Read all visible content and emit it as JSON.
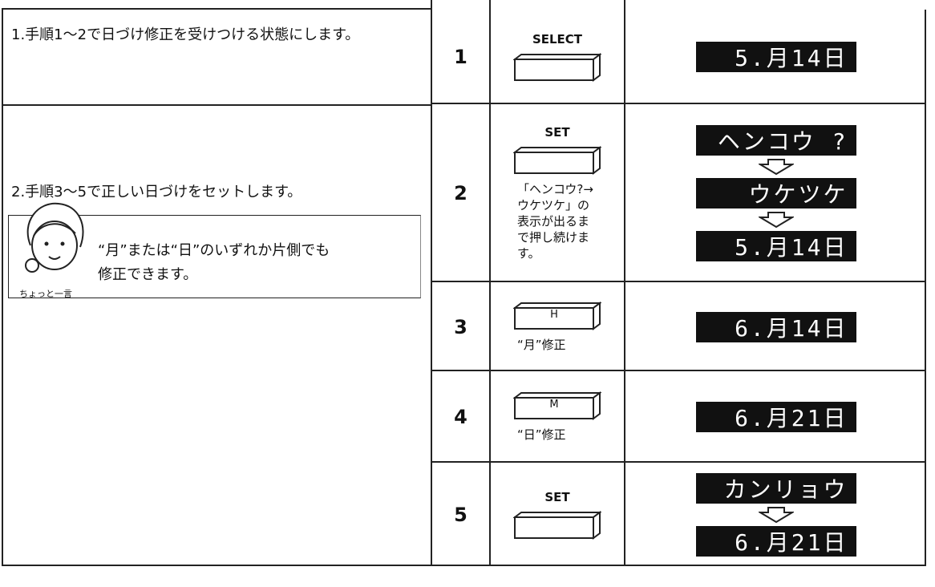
{
  "left": {
    "steps": [
      "1.手順1～2で日づけ修正を受けつける状態にします。",
      "2.手順3～5で正しい日づけをセットします。"
    ],
    "tip": {
      "caption": "ちょっと一言",
      "text": "“月”または“日”のいずれか片側でも修正できます。"
    }
  },
  "table": {
    "rows": [
      {
        "number": "1",
        "button_label": "SELECT",
        "displays": [
          "5.月14日"
        ]
      },
      {
        "number": "2",
        "button_label": "SET",
        "note": "「ヘンコウ?→ウケツケ」の表示が出るまで押し続けます。",
        "displays": [
          "ヘンコウ ?",
          "ウケツケ",
          "5.月14日"
        ]
      },
      {
        "number": "3",
        "key_text": "H",
        "note": "“月”修正",
        "displays": [
          "6.月14日"
        ]
      },
      {
        "number": "4",
        "key_text": "M",
        "note": "“日”修正",
        "displays": [
          "6.月21日"
        ]
      },
      {
        "number": "5",
        "button_label": "SET",
        "displays": [
          "カンリョウ",
          "6.月21日"
        ]
      }
    ]
  }
}
